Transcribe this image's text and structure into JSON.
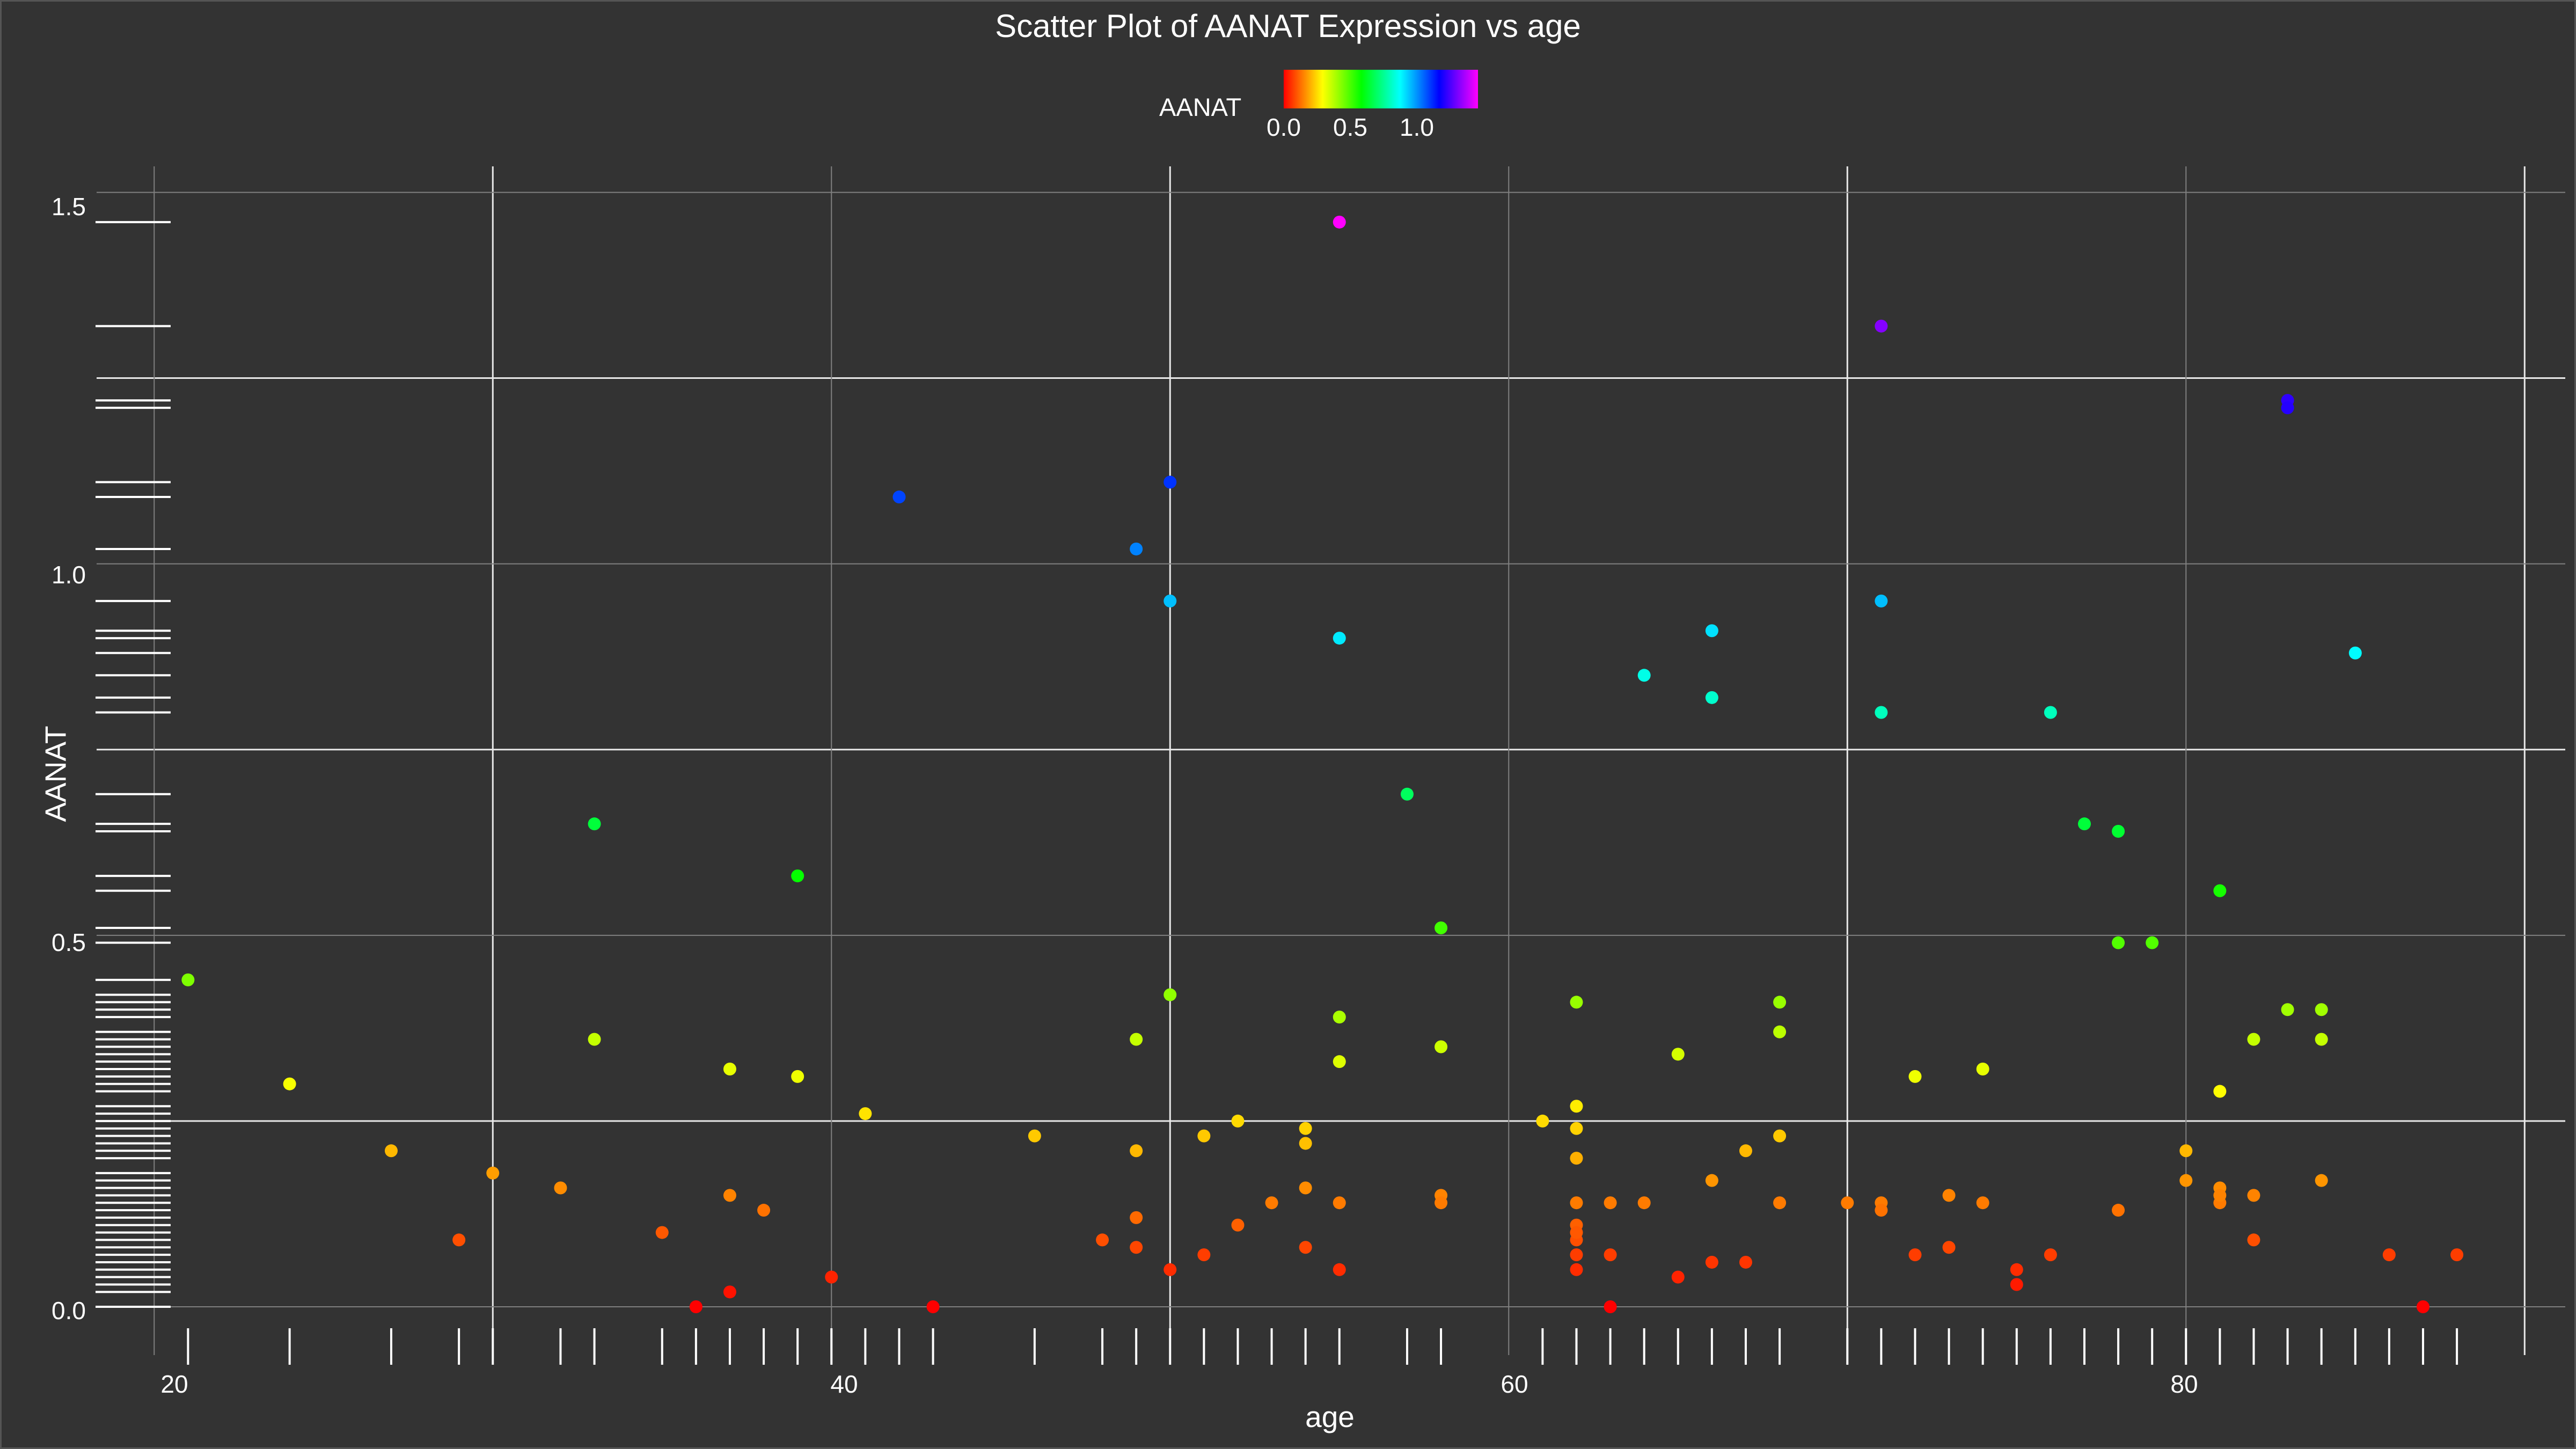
{
  "chart_data": {
    "type": "scatter",
    "title": "Scatter Plot of AANAT Expression vs age",
    "xlabel": "age",
    "ylabel": "AANAT",
    "xlim": [
      18.3,
      91.2
    ],
    "ylim": [
      -0.065,
      1.535
    ],
    "x_ticks": [
      20,
      40,
      60,
      80
    ],
    "y_ticks": [
      "0.0",
      "0.5",
      "1.0",
      "1.5"
    ],
    "grid": true,
    "rug": true,
    "colorbar": {
      "title": "AANAT",
      "ticks": [
        "0.0",
        "0.5",
        "1.0"
      ],
      "range": [
        0,
        1.46
      ],
      "colors": [
        "#ff0000",
        "#ff8000",
        "#ffff00",
        "#80ff00",
        "#00ff00",
        "#00ff80",
        "#00ffff",
        "#0080ff",
        "#0000ff",
        "#8000ff",
        "#ff00ff"
      ],
      "placement": "top"
    },
    "x": [
      21,
      24,
      27,
      29,
      30,
      32,
      33,
      33,
      35,
      36,
      37,
      37,
      37,
      38,
      39,
      39,
      40,
      41,
      42,
      43,
      46,
      48,
      49,
      49,
      49,
      49,
      49,
      50,
      50,
      50,
      50,
      51,
      51,
      52,
      52,
      53,
      54,
      54,
      54,
      54,
      55,
      55,
      55,
      55,
      55,
      55,
      57,
      58,
      58,
      58,
      58,
      61,
      62,
      62,
      62,
      62,
      62,
      62,
      62,
      62,
      62,
      62,
      63,
      63,
      63,
      64,
      64,
      65,
      65,
      66,
      66,
      66,
      66,
      67,
      67,
      68,
      68,
      68,
      68,
      70,
      71,
      71,
      71,
      71,
      71,
      72,
      72,
      73,
      73,
      74,
      74,
      75,
      75,
      76,
      76,
      77,
      78,
      78,
      78,
      79,
      80,
      80,
      81,
      81,
      81,
      81,
      81,
      82,
      82,
      82,
      83,
      83,
      83,
      84,
      84,
      84,
      85,
      86,
      87,
      88
    ],
    "y": [
      0.44,
      0.3,
      0.21,
      0.09,
      0.18,
      0.16,
      0.65,
      0.36,
      0.1,
      0.0,
      0.32,
      0.15,
      0.02,
      0.13,
      0.58,
      0.31,
      0.04,
      0.26,
      1.09,
      0.0,
      0.23,
      0.09,
      1.02,
      0.36,
      0.21,
      0.12,
      0.08,
      1.11,
      0.95,
      0.42,
      0.05,
      0.23,
      0.07,
      0.25,
      0.11,
      0.14,
      0.24,
      0.22,
      0.16,
      0.08,
      1.46,
      0.9,
      0.39,
      0.33,
      0.14,
      0.05,
      0.69,
      0.51,
      0.35,
      0.15,
      0.14,
      0.25,
      0.41,
      0.27,
      0.24,
      0.2,
      0.14,
      0.11,
      0.09,
      0.07,
      0.05,
      0.1,
      0.14,
      0.07,
      0.0,
      0.85,
      0.14,
      0.34,
      0.04,
      0.91,
      0.82,
      0.17,
      0.06,
      0.21,
      0.06,
      0.41,
      0.37,
      0.23,
      0.14,
      0.14,
      1.32,
      0.95,
      0.8,
      0.14,
      0.13,
      0.31,
      0.07,
      0.15,
      0.08,
      0.32,
      0.14,
      0.05,
      0.03,
      0.8,
      0.07,
      0.65,
      0.64,
      0.49,
      0.13,
      0.49,
      0.21,
      0.17,
      0.56,
      0.29,
      0.16,
      0.14,
      0.15,
      0.36,
      0.15,
      0.09,
      1.22,
      1.21,
      0.4,
      0.4,
      0.36,
      0.17,
      0.88,
      0.07,
      0.0,
      0.07
    ]
  }
}
